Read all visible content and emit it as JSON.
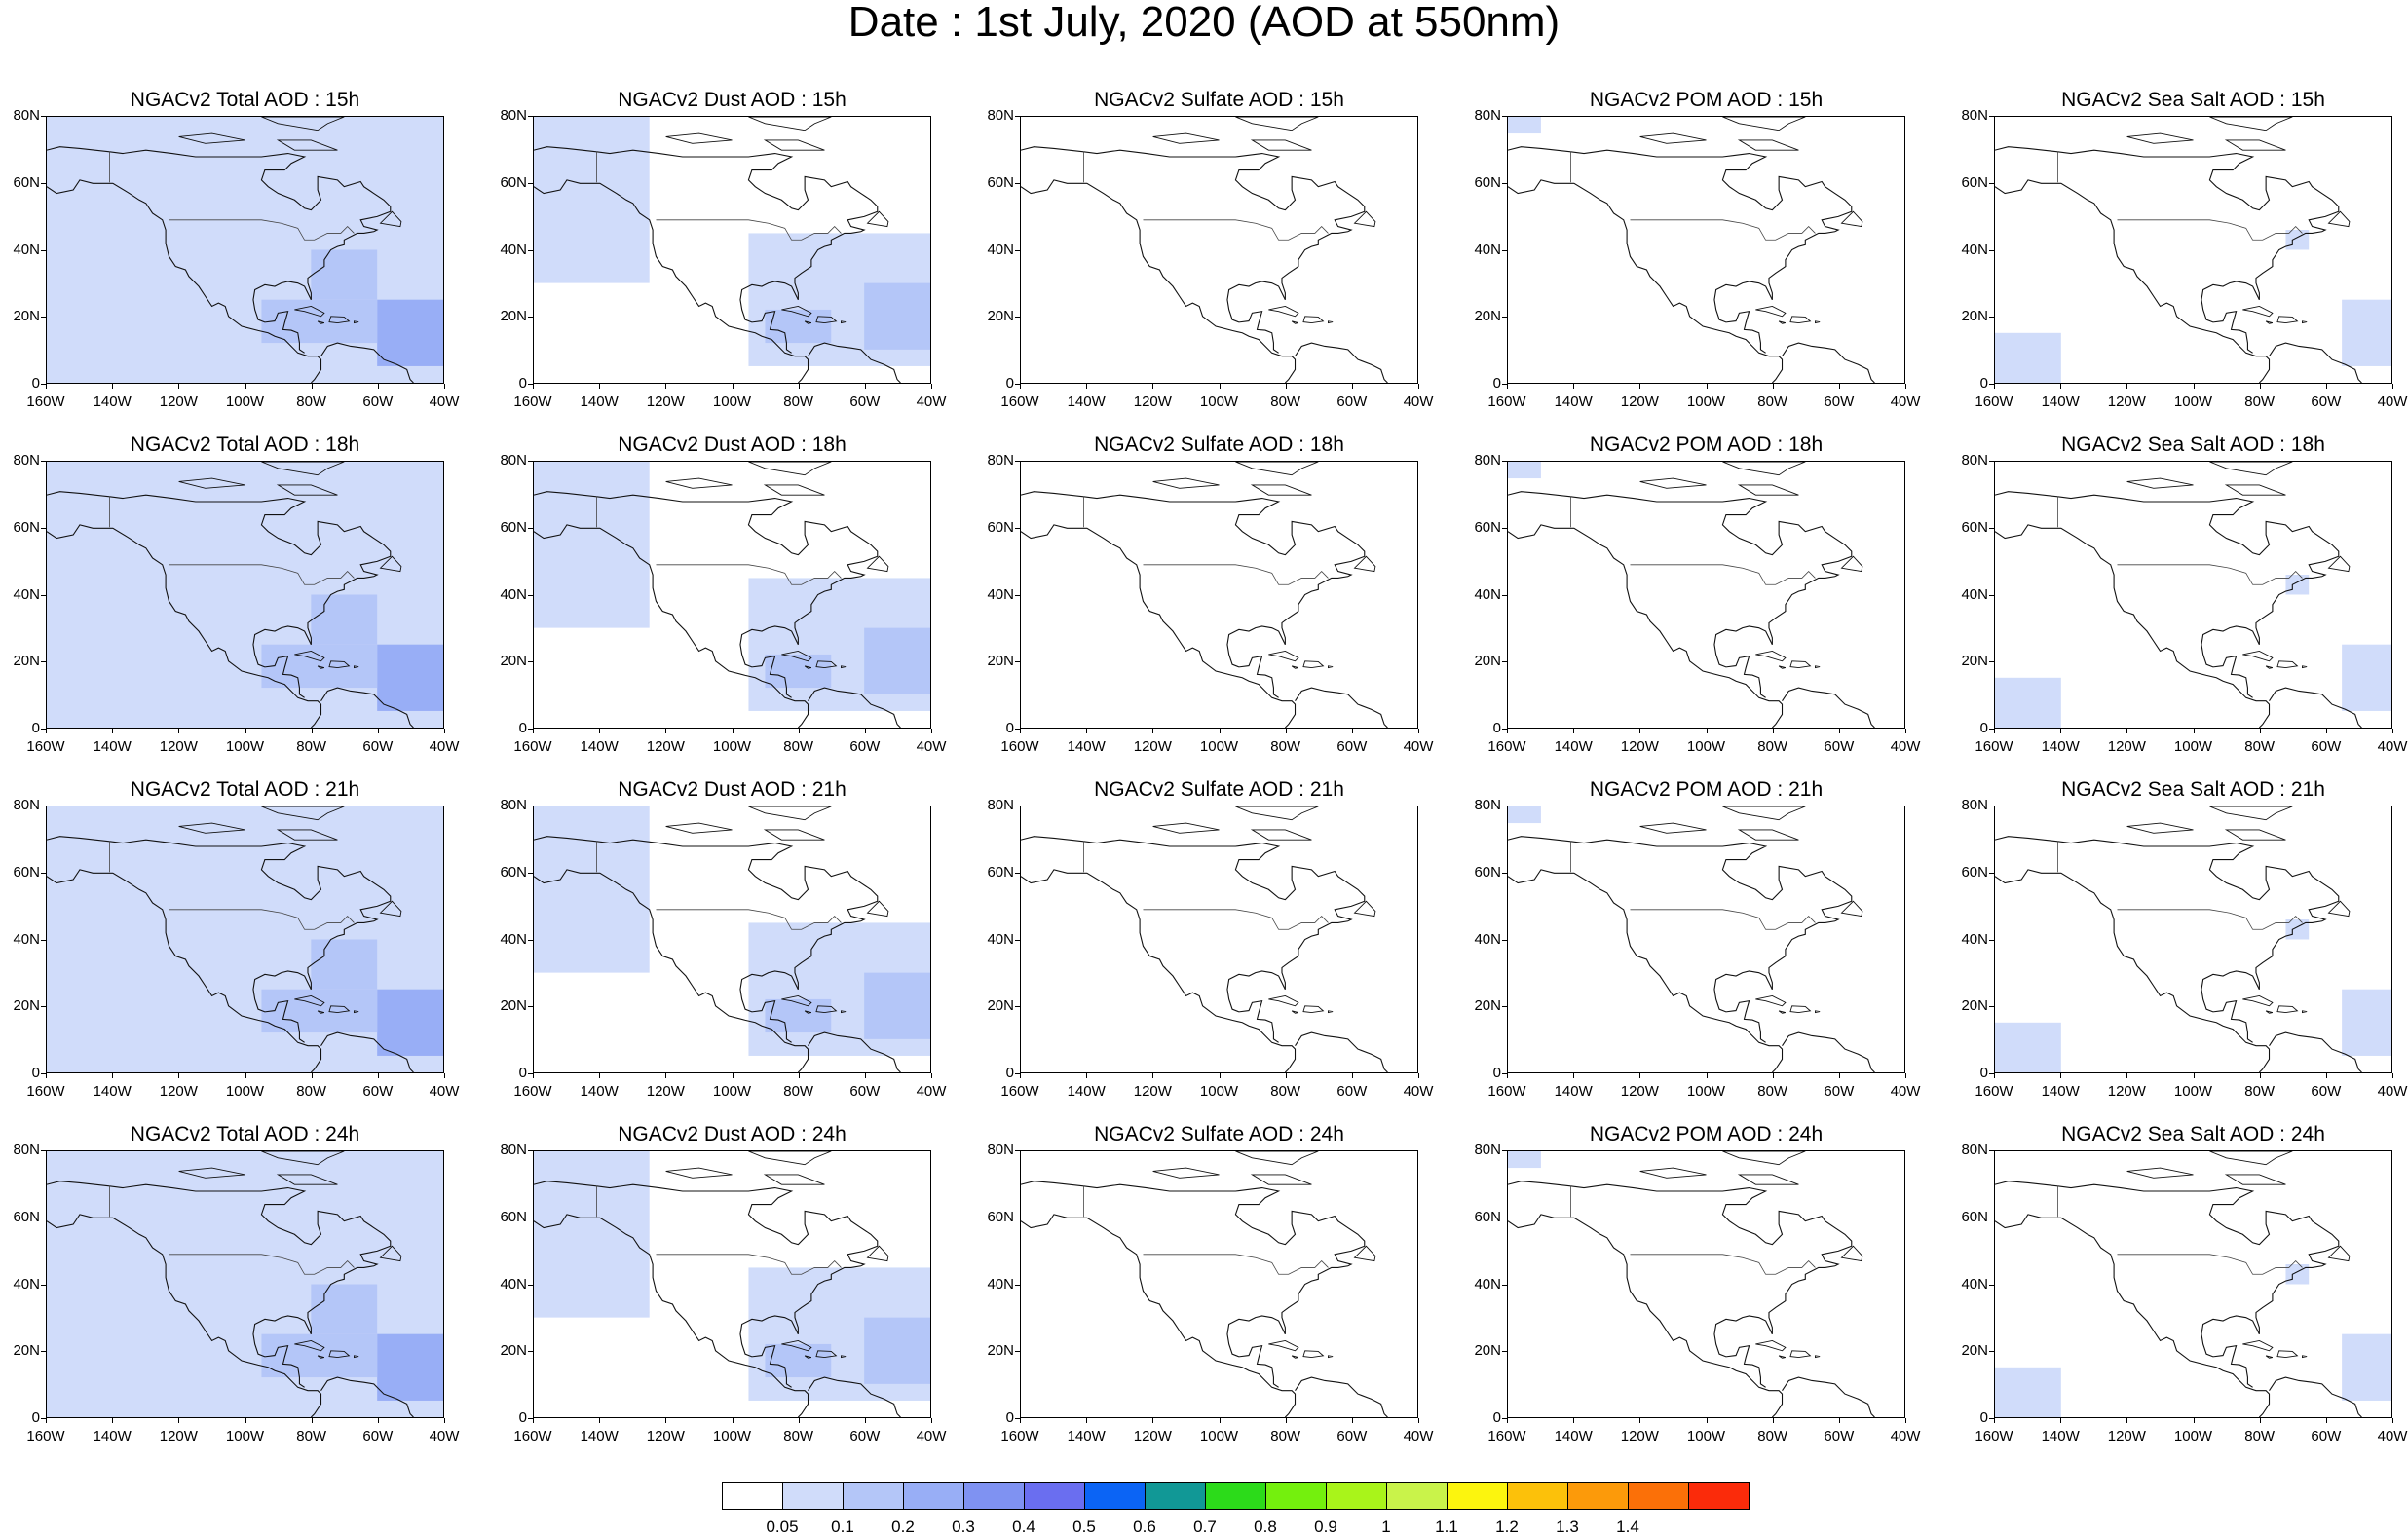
{
  "title": "Date : 1st July, 2020 (AOD at 550nm)",
  "chart_data": {
    "type": "heatmap",
    "title": "Date : 1st July, 2020 (AOD at 550nm)",
    "x_ticks": [
      "160W",
      "140W",
      "120W",
      "100W",
      "80W",
      "60W",
      "40W"
    ],
    "y_ticks": [
      "80N",
      "60N",
      "40N",
      "20N",
      "0"
    ],
    "xlim": [
      -160,
      -40
    ],
    "ylim": [
      0,
      80
    ],
    "grid": false,
    "colorbar": {
      "placement": "bottom",
      "levels": [
        "0.05",
        "0.1",
        "0.2",
        "0.3",
        "0.4",
        "0.5",
        "0.6",
        "0.7",
        "0.8",
        "0.9",
        "1",
        "1.1",
        "1.2",
        "1.3",
        "1.4"
      ],
      "colors": [
        "#ffffff",
        "#d0dcfa",
        "#b4c6f8",
        "#98aef6",
        "#7f92f2",
        "#6a6ef0",
        "#0b64f5",
        "#119896",
        "#2cdb1a",
        "#74f00d",
        "#a9f41a",
        "#c9f34a",
        "#fcf50e",
        "#fcc10a",
        "#fc9a0a",
        "#fb7008",
        "#fb2b0a"
      ]
    },
    "panels": [
      {
        "row": 0,
        "col": 0,
        "title": "NGACv2 Total AOD : 15h",
        "species": "total"
      },
      {
        "row": 0,
        "col": 1,
        "title": "NGACv2 Dust AOD : 15h",
        "species": "dust"
      },
      {
        "row": 0,
        "col": 2,
        "title": "NGACv2 Sulfate AOD : 15h",
        "species": "sulfate"
      },
      {
        "row": 0,
        "col": 3,
        "title": "NGACv2 POM AOD : 15h",
        "species": "pom"
      },
      {
        "row": 0,
        "col": 4,
        "title": "NGACv2 Sea Salt AOD : 15h",
        "species": "seasalt"
      },
      {
        "row": 1,
        "col": 0,
        "title": "NGACv2 Total AOD : 18h",
        "species": "total"
      },
      {
        "row": 1,
        "col": 1,
        "title": "NGACv2 Dust AOD : 18h",
        "species": "dust"
      },
      {
        "row": 1,
        "col": 2,
        "title": "NGACv2 Sulfate AOD : 18h",
        "species": "sulfate"
      },
      {
        "row": 1,
        "col": 3,
        "title": "NGACv2 POM AOD : 18h",
        "species": "pom"
      },
      {
        "row": 1,
        "col": 4,
        "title": "NGACv2 Sea Salt AOD : 18h",
        "species": "seasalt"
      },
      {
        "row": 2,
        "col": 0,
        "title": "NGACv2 Total AOD : 21h",
        "species": "total"
      },
      {
        "row": 2,
        "col": 1,
        "title": "NGACv2 Dust AOD : 21h",
        "species": "dust"
      },
      {
        "row": 2,
        "col": 2,
        "title": "NGACv2 Sulfate AOD : 21h",
        "species": "sulfate"
      },
      {
        "row": 2,
        "col": 3,
        "title": "NGACv2 POM AOD : 21h",
        "species": "pom"
      },
      {
        "row": 2,
        "col": 4,
        "title": "NGACv2 Sea Salt AOD : 21h",
        "species": "seasalt"
      },
      {
        "row": 3,
        "col": 0,
        "title": "NGACv2 Total AOD : 24h",
        "species": "total"
      },
      {
        "row": 3,
        "col": 1,
        "title": "NGACv2 Dust AOD : 24h",
        "species": "dust"
      },
      {
        "row": 3,
        "col": 2,
        "title": "NGACv2 Sulfate AOD : 24h",
        "species": "sulfate"
      },
      {
        "row": 3,
        "col": 3,
        "title": "NGACv2 POM AOD : 24h",
        "species": "pom"
      },
      {
        "row": 3,
        "col": 4,
        "title": "NGACv2 Sea Salt  AOD : 24h",
        "species": "seasalt"
      }
    ],
    "regions": {
      "total": [
        {
          "lon": [
            -160,
            -40
          ],
          "lat": [
            0,
            80
          ],
          "level": "0.05-0.1"
        },
        {
          "lon": [
            -60,
            -40
          ],
          "lat": [
            5,
            25
          ],
          "level": "0.2-0.3"
        },
        {
          "lon": [
            -95,
            -60
          ],
          "lat": [
            12,
            25
          ],
          "level": "0.1-0.2"
        },
        {
          "lon": [
            -80,
            -60
          ],
          "lat": [
            25,
            40
          ],
          "level": "0.1-0.2"
        }
      ],
      "dust": [
        {
          "lon": [
            -95,
            -40
          ],
          "lat": [
            5,
            45
          ],
          "level": "0.05-0.1"
        },
        {
          "lon": [
            -160,
            -125
          ],
          "lat": [
            30,
            80
          ],
          "level": "0.05-0.1"
        },
        {
          "lon": [
            -60,
            -40
          ],
          "lat": [
            10,
            30
          ],
          "level": "0.1-0.2"
        },
        {
          "lon": [
            -90,
            -70
          ],
          "lat": [
            12,
            22
          ],
          "level": "0.1-0.2"
        }
      ],
      "sulfate": [],
      "pom": [
        {
          "lon": [
            -160,
            -150
          ],
          "lat": [
            75,
            80
          ],
          "level": "0.05-0.1"
        }
      ],
      "seasalt": [
        {
          "lon": [
            -160,
            -140
          ],
          "lat": [
            0,
            15
          ],
          "level": "0.05-0.1"
        },
        {
          "lon": [
            -55,
            -40
          ],
          "lat": [
            5,
            25
          ],
          "level": "0.05-0.1"
        },
        {
          "lon": [
            -72,
            -65
          ],
          "lat": [
            40,
            46
          ],
          "level": "0.05-0.1"
        }
      ]
    }
  }
}
